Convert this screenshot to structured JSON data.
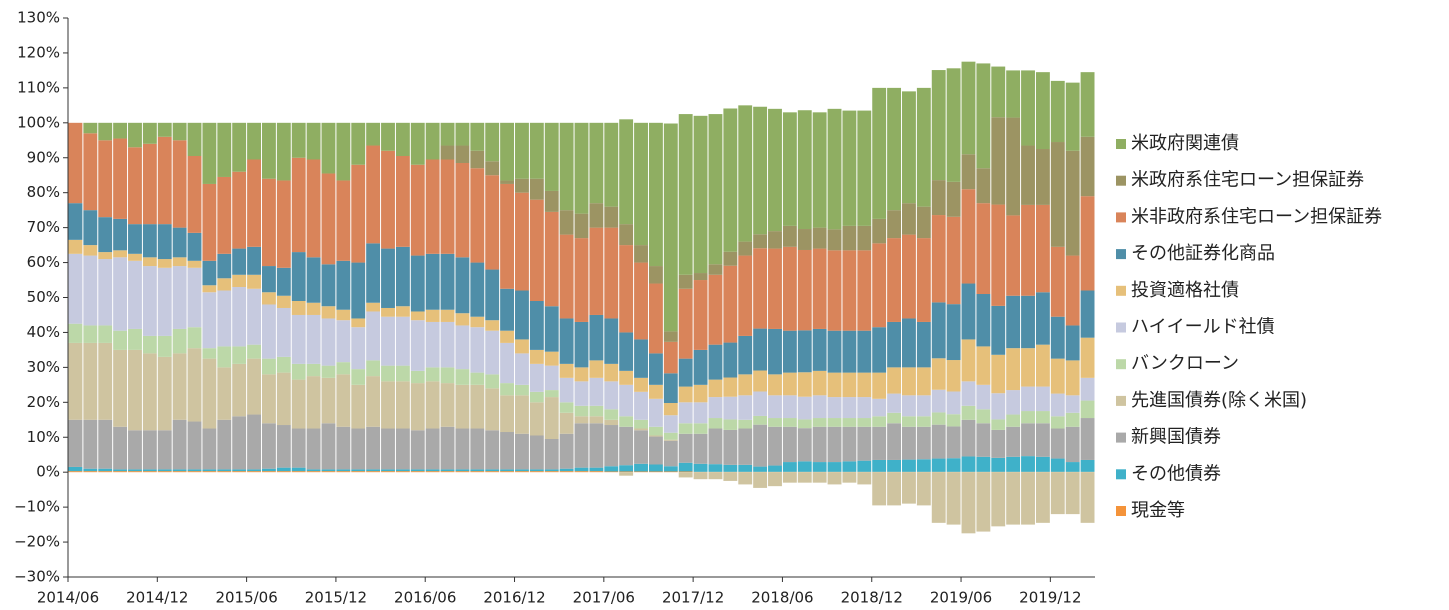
{
  "chart_data": {
    "type": "stacked_bar",
    "categories": [
      "2014/06",
      null,
      null,
      null,
      null,
      null,
      "2014/12",
      null,
      null,
      null,
      null,
      null,
      "2015/06",
      null,
      null,
      null,
      null,
      null,
      "2015/12",
      null,
      null,
      null,
      null,
      null,
      "2016/06",
      null,
      null,
      null,
      null,
      null,
      "2016/12",
      null,
      null,
      null,
      null,
      null,
      "2017/06",
      null,
      null,
      null,
      null,
      null,
      "2017/12",
      null,
      null,
      null,
      null,
      null,
      "2018/06",
      null,
      null,
      null,
      null,
      null,
      "2018/12",
      null,
      null,
      null,
      null,
      null,
      "2019/06",
      null,
      null,
      null,
      null,
      null,
      "2019/12",
      null,
      null
    ],
    "series": [
      {
        "name": "米政府関連債",
        "color": "#8fae62",
        "values": [
          0,
          3,
          5,
          4.5,
          7,
          6,
          4,
          5,
          9.5,
          17.5,
          15.5,
          14,
          10.5,
          16,
          16.5,
          10,
          10.5,
          14.5,
          16.5,
          12,
          6.5,
          8,
          9.5,
          12,
          10.5,
          6.5,
          6.5,
          8,
          11,
          16.5,
          16,
          16,
          19.5,
          25,
          26,
          23,
          24,
          30,
          35,
          41,
          59.5,
          46,
          45,
          43,
          41,
          39,
          36.5,
          35,
          32.5,
          34,
          33,
          34.5,
          33,
          33,
          37.5,
          35,
          32,
          34,
          31.5,
          32.5,
          26.5,
          30,
          14.5,
          13.5,
          21.5,
          22,
          17.5,
          19.5,
          18.5
        ]
      },
      {
        "name": "米政府系住宅ローン担保証券",
        "color": "#9c9463",
        "values": [
          0,
          0,
          0,
          0,
          0,
          0,
          0,
          0,
          0,
          0,
          0,
          0,
          0,
          0,
          0,
          0,
          0,
          0,
          0,
          0,
          0,
          0,
          0,
          0,
          0,
          4,
          5,
          5,
          4,
          1,
          4,
          6,
          6,
          7,
          7,
          7,
          6,
          6,
          5,
          5,
          3,
          4,
          2,
          3,
          4,
          4,
          4,
          5,
          6,
          6,
          6,
          6,
          7,
          7,
          7,
          8,
          9,
          9,
          10,
          10,
          10,
          10,
          25,
          28,
          17,
          16,
          30,
          30,
          17
        ]
      },
      {
        "name": "米非政府系住宅ローン担保証券",
        "color": "#d9845a",
        "values": [
          23,
          22,
          22,
          23,
          22,
          23,
          25,
          25,
          22,
          22,
          22,
          22,
          25,
          25,
          25,
          27,
          28,
          26,
          23,
          28,
          28,
          28,
          26,
          26,
          27,
          27,
          27,
          27,
          27,
          30,
          28,
          29,
          27,
          24,
          24,
          25,
          26,
          25,
          22,
          20,
          9,
          20,
          20,
          20,
          22,
          23,
          23,
          23,
          24,
          23,
          23,
          23,
          23,
          23,
          24,
          24,
          24,
          24,
          25,
          25,
          27,
          26,
          29,
          23,
          26,
          25,
          20,
          20,
          27
        ]
      },
      {
        "name": "その他証券化商品",
        "color": "#4f8ea8",
        "values": [
          10.5,
          10,
          10,
          9,
          8.5,
          9.5,
          10,
          8.5,
          8,
          7,
          7,
          7.5,
          8,
          7.5,
          8,
          14,
          13,
          12,
          14,
          16,
          17,
          17,
          17,
          16,
          16,
          16,
          16,
          15.5,
          14.5,
          12,
          14,
          14,
          13,
          13,
          13,
          13,
          13,
          11,
          11,
          9,
          8.5,
          8,
          10,
          10,
          10,
          11,
          12,
          13,
          12,
          12,
          12,
          12,
          12,
          12,
          13,
          13,
          14,
          13,
          16,
          16,
          16,
          15,
          14,
          15,
          15,
          15,
          12,
          10,
          13.5
        ]
      },
      {
        "name": "投資適格社債",
        "color": "#e6c07a",
        "values": [
          4,
          3,
          2,
          2,
          2,
          2.5,
          2.5,
          2.5,
          2,
          2,
          3.5,
          3.5,
          4,
          3.5,
          3.5,
          4,
          3.5,
          3.5,
          3,
          2.5,
          2.5,
          2.5,
          3,
          2.5,
          3.5,
          3.5,
          3.5,
          3,
          3,
          3.5,
          4,
          4,
          4,
          4,
          4,
          5,
          5,
          4,
          4,
          4,
          3.5,
          4.5,
          5,
          5,
          5.5,
          6,
          6,
          6,
          6.5,
          7,
          7,
          7,
          7,
          7,
          7.5,
          7.5,
          8,
          8,
          9,
          9,
          12,
          11,
          11,
          12,
          11,
          12,
          10,
          10,
          11.5
        ]
      },
      {
        "name": "ハイイールド社債",
        "color": "#c6cadf",
        "values": [
          20,
          20,
          19,
          21,
          19.5,
          20,
          19.5,
          18,
          17,
          16,
          16,
          17,
          16,
          15.5,
          14,
          14,
          14,
          13.5,
          12,
          12,
          14,
          14,
          14,
          14.5,
          13,
          13,
          12.5,
          13,
          12.5,
          11.5,
          9,
          8,
          7,
          7,
          7,
          8,
          8,
          9,
          8,
          8,
          5,
          6,
          6,
          6,
          6.5,
          7,
          7,
          6.5,
          6.5,
          6.5,
          6.5,
          6,
          6,
          6,
          5,
          5.5,
          6,
          6,
          6.5,
          6.5,
          7,
          7,
          7.5,
          7,
          7,
          7,
          6.5,
          5,
          6.5
        ]
      },
      {
        "name": "バンクローン",
        "color": "#bcd8a8",
        "values": [
          5.5,
          5,
          5,
          5.5,
          6,
          5,
          6,
          7,
          6,
          3,
          6,
          5,
          4,
          4.5,
          4.5,
          4.5,
          3.5,
          3.5,
          3.5,
          4.5,
          4.5,
          4.5,
          4.5,
          3.5,
          4,
          4.5,
          4.5,
          3.5,
          4,
          3.5,
          3,
          3,
          2,
          3,
          3,
          3,
          3,
          3,
          2.5,
          2.5,
          2,
          3,
          3,
          3,
          3,
          2.5,
          2.5,
          2.5,
          2.5,
          2.5,
          2.5,
          2.5,
          2.5,
          2.5,
          3,
          3,
          3,
          3,
          3.5,
          3.5,
          4,
          4,
          3,
          3.5,
          3.5,
          3.5,
          3.5,
          4,
          5
        ]
      },
      {
        "name": "先進国債券(除く米国)",
        "color": "#cfc4a0",
        "values": [
          22,
          22,
          22,
          22,
          23,
          22,
          21,
          19,
          21,
          20,
          15,
          15,
          16,
          14,
          15,
          14,
          15,
          13,
          15,
          12.5,
          14.5,
          13.5,
          13.5,
          13.5,
          13.5,
          12.5,
          12.5,
          12.5,
          12,
          10.5,
          11,
          9.5,
          12,
          6,
          2,
          2,
          1.5,
          -1,
          0.5,
          0.3,
          0.3,
          -1.5,
          -2,
          -2,
          -2.5,
          -3.5,
          -4.5,
          -4,
          -3,
          -3,
          -3,
          -3.5,
          -3,
          -3.5,
          -9.5,
          -9.5,
          -9,
          -9.5,
          -14.5,
          -15,
          -17.5,
          -17,
          -15.5,
          -15,
          -15,
          -14.5,
          -12,
          -12,
          -14.5
        ]
      },
      {
        "name": "新興国債券",
        "color": "#a9a9a9",
        "values": [
          13.5,
          14,
          14,
          12.2,
          11.2,
          11.2,
          11.2,
          14.2,
          13.7,
          11.7,
          14.2,
          15.2,
          15.7,
          13,
          12.2,
          11.2,
          11.7,
          13.2,
          12.2,
          11.7,
          12.2,
          11.7,
          11.7,
          11.2,
          11.7,
          12.2,
          11.7,
          11.7,
          11.2,
          10.7,
          10.2,
          9.7,
          8.7,
          10,
          12.7,
          12.7,
          11.8,
          11,
          9.6,
          8,
          7.3,
          8.3,
          8.6,
          10.2,
          10,
          10.4,
          12,
          11.1,
          10.1,
          9.5,
          10.1,
          10.1,
          9.9,
          9.7,
          9.5,
          10.5,
          9.4,
          9.3,
          9.7,
          9.1,
          10.5,
          9.6,
          8,
          8.6,
          9.4,
          9.6,
          8.6,
          10.1,
          12
        ]
      },
      {
        "name": "その他債券",
        "color": "#3fb1c9",
        "values": [
          1.2,
          0.7,
          0.7,
          0.5,
          0.5,
          0.5,
          0.5,
          0.5,
          0.5,
          0.5,
          0.5,
          0.5,
          0.5,
          0.7,
          1,
          1,
          0.5,
          0.5,
          0.5,
          0.5,
          0.5,
          0.5,
          0.5,
          0.5,
          0.5,
          0.5,
          0.5,
          0.5,
          0.5,
          0.5,
          0.5,
          0.5,
          0.5,
          0.7,
          1,
          1,
          1.5,
          1.8,
          2.2,
          2,
          1.5,
          2.5,
          2.3,
          2.2,
          2,
          2,
          1.5,
          1.8,
          2.8,
          3,
          2.8,
          2.8,
          3,
          3.2,
          3.4,
          3.4,
          3.5,
          3.6,
          3.8,
          3.9,
          4.4,
          4.3,
          4,
          4.3,
          4.5,
          4.3,
          3.8,
          2.8,
          3.4
        ]
      },
      {
        "name": "現金等",
        "color": "#f4933a",
        "values": [
          0.3,
          0.3,
          0.3,
          0.3,
          0.3,
          0.3,
          0.3,
          0.3,
          0.3,
          0.3,
          0.3,
          0.3,
          0.3,
          0.3,
          0.3,
          0.3,
          0.3,
          0.3,
          0.3,
          0.3,
          0.3,
          0.3,
          0.3,
          0.3,
          0.3,
          0.3,
          0.3,
          0.3,
          0.3,
          0.3,
          0.3,
          0.3,
          0.3,
          0.3,
          0.3,
          0.3,
          0.2,
          0.2,
          0.2,
          0.2,
          0.2,
          0.2,
          0.1,
          0.1,
          0.1,
          0.1,
          0.1,
          0.1,
          0.1,
          0.1,
          0.1,
          0.1,
          0.1,
          0.1,
          0.1,
          0.1,
          0.1,
          0.1,
          0.1,
          0.1,
          0.1,
          0.1,
          0.1,
          0.1,
          0.1,
          0.1,
          0.1,
          0.1,
          0.1
        ]
      }
    ],
    "ylim": [
      -30,
      130
    ],
    "yticks": [
      {
        "value": -30,
        "label": "−30%"
      },
      {
        "value": -20,
        "label": "−20%"
      },
      {
        "value": -10,
        "label": "−10%"
      },
      {
        "value": 0,
        "label": "0%"
      },
      {
        "value": 10,
        "label": "10%"
      },
      {
        "value": 20,
        "label": "20%"
      },
      {
        "value": 30,
        "label": "30%"
      },
      {
        "value": 40,
        "label": "40%"
      },
      {
        "value": 50,
        "label": "50%"
      },
      {
        "value": 60,
        "label": "60%"
      },
      {
        "value": 70,
        "label": "70%"
      },
      {
        "value": 80,
        "label": "80%"
      },
      {
        "value": 90,
        "label": "90%"
      },
      {
        "value": 100,
        "label": "100%"
      },
      {
        "value": 110,
        "label": "110%"
      },
      {
        "value": 120,
        "label": "120%"
      },
      {
        "value": 130,
        "label": "130%"
      }
    ],
    "grid": false,
    "legend": "right"
  }
}
